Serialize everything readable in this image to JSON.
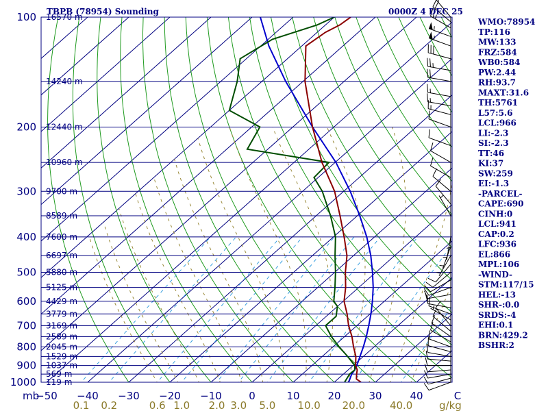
{
  "header": {
    "station": "TBPB (78954) Sounding",
    "time": "0000Z  4 DEC 25"
  },
  "chart_data": {
    "type": "skew-t",
    "pressure_levels": [
      100,
      200,
      300,
      400,
      500,
      600,
      700,
      800,
      900,
      1000
    ],
    "height_labels": [
      "16570 m",
      "14240 m",
      "12440 m",
      "10960 m",
      "9700 m",
      "8589 m",
      "7600 m",
      "6697 m",
      "5880 m",
      "5125 m",
      "4429 m",
      "3779 m",
      "3169 m",
      "2589 m",
      "2045 m",
      "1529 m",
      "1037 m",
      "569 m",
      "119 m"
    ],
    "height_pressures": [
      100,
      150,
      200,
      250,
      300,
      350,
      400,
      450,
      500,
      550,
      600,
      650,
      700,
      750,
      800,
      850,
      900,
      950,
      1000
    ],
    "temp_axis_labels": [
      "−50",
      "−40",
      "−30",
      "−20",
      "−10",
      "0",
      "10",
      "20",
      "30",
      "40",
      "C"
    ],
    "temp_axis_unit": "C",
    "mixing_ratio_labels": [
      "0.1",
      "0.2",
      "0.6",
      "1.0",
      "2.0",
      "3.0",
      "5.0",
      "10.0",
      "20.0",
      "40.0"
    ],
    "mixing_ratio_values": [
      0.1,
      0.2,
      0.6,
      1.0,
      2.0,
      3.0,
      5.0,
      10.0,
      20.0,
      40.0
    ],
    "mixing_ratio_unit": "g/kg",
    "pressure_unit": "mb",
    "temperature_profile": [
      {
        "p": 1000,
        "t": 26.5
      },
      {
        "p": 980,
        "t": 24.5
      },
      {
        "p": 950,
        "t": 23.2
      },
      {
        "p": 925,
        "t": 22.2
      },
      {
        "p": 900,
        "t": 20.6
      },
      {
        "p": 850,
        "t": 18.2
      },
      {
        "p": 800,
        "t": 15.0
      },
      {
        "p": 750,
        "t": 11.8
      },
      {
        "p": 700,
        "t": 8.0
      },
      {
        "p": 650,
        "t": 4.4
      },
      {
        "p": 600,
        "t": 0.2
      },
      {
        "p": 550,
        "t": -3.2
      },
      {
        "p": 500,
        "t": -7.4
      },
      {
        "p": 450,
        "t": -11.6
      },
      {
        "p": 400,
        "t": -17.4
      },
      {
        "p": 350,
        "t": -24.2
      },
      {
        "p": 300,
        "t": -32.2
      },
      {
        "p": 250,
        "t": -43.2
      },
      {
        "p": 200,
        "t": -55.2
      },
      {
        "p": 150,
        "t": -69.5
      },
      {
        "p": 120,
        "t": -79.0
      },
      {
        "p": 110,
        "t": -78.0
      },
      {
        "p": 105,
        "t": -76.5
      },
      {
        "p": 100,
        "t": -76.0
      }
    ],
    "dewpoint_profile": [
      {
        "p": 1000,
        "t": 22.5
      },
      {
        "p": 950,
        "t": 21.5
      },
      {
        "p": 925,
        "t": 21.6
      },
      {
        "p": 900,
        "t": 20.4
      },
      {
        "p": 850,
        "t": 16.2
      },
      {
        "p": 800,
        "t": 11.5
      },
      {
        "p": 750,
        "t": 6.8
      },
      {
        "p": 700,
        "t": 2.4
      },
      {
        "p": 660,
        "t": 2.4
      },
      {
        "p": 620,
        "t": 0.0
      },
      {
        "p": 600,
        "t": -2.3
      },
      {
        "p": 550,
        "t": -5.8
      },
      {
        "p": 500,
        "t": -9.8
      },
      {
        "p": 450,
        "t": -14.5
      },
      {
        "p": 400,
        "t": -19.5
      },
      {
        "p": 350,
        "t": -26.5
      },
      {
        "p": 300,
        "t": -35.2
      },
      {
        "p": 275,
        "t": -41.0
      },
      {
        "p": 250,
        "t": -41.5
      },
      {
        "p": 230,
        "t": -65.0
      },
      {
        "p": 200,
        "t": -68.0
      },
      {
        "p": 180,
        "t": -80.0
      },
      {
        "p": 150,
        "t": -86.0
      },
      {
        "p": 130,
        "t": -91.5
      },
      {
        "p": 115,
        "t": -89.0
      },
      {
        "p": 105,
        "t": -82.0
      },
      {
        "p": 100,
        "t": -80.0
      }
    ],
    "parcel_profile": [
      {
        "p": 1000,
        "t": 23.5
      },
      {
        "p": 950,
        "t": 22.0
      },
      {
        "p": 925,
        "t": 21.6
      },
      {
        "p": 900,
        "t": 20.9
      },
      {
        "p": 850,
        "t": 19.2
      },
      {
        "p": 800,
        "t": 17.4
      },
      {
        "p": 750,
        "t": 15.3
      },
      {
        "p": 700,
        "t": 12.9
      },
      {
        "p": 650,
        "t": 10.2
      },
      {
        "p": 600,
        "t": 7.1
      },
      {
        "p": 550,
        "t": 3.5
      },
      {
        "p": 500,
        "t": -0.8
      },
      {
        "p": 450,
        "t": -5.8
      },
      {
        "p": 400,
        "t": -11.9
      },
      {
        "p": 350,
        "t": -19.4
      },
      {
        "p": 300,
        "t": -28.4
      },
      {
        "p": 250,
        "t": -39.8
      },
      {
        "p": 200,
        "t": -55.2
      },
      {
        "p": 150,
        "t": -74.2
      },
      {
        "p": 120,
        "t": -88.0
      },
      {
        "p": 100,
        "t": -98.0
      }
    ],
    "wind_levels": [
      {
        "p": 1000,
        "dir": 250,
        "spd": 10
      },
      {
        "p": 975,
        "dir": 255,
        "spd": 10
      },
      {
        "p": 950,
        "dir": 260,
        "spd": 10
      },
      {
        "p": 925,
        "dir": 265,
        "spd": 10
      },
      {
        "p": 900,
        "dir": 270,
        "spd": 10
      },
      {
        "p": 875,
        "dir": 275,
        "spd": 10
      },
      {
        "p": 850,
        "dir": 280,
        "spd": 10
      },
      {
        "p": 825,
        "dir": 285,
        "spd": 10
      },
      {
        "p": 800,
        "dir": 290,
        "spd": 10
      },
      {
        "p": 775,
        "dir": 300,
        "spd": 10
      },
      {
        "p": 750,
        "dir": 305,
        "spd": 10
      },
      {
        "p": 725,
        "dir": 310,
        "spd": 10
      },
      {
        "p": 700,
        "dir": 320,
        "spd": 10
      },
      {
        "p": 675,
        "dir": 300,
        "spd": 5
      },
      {
        "p": 650,
        "dir": 290,
        "spd": 10
      },
      {
        "p": 625,
        "dir": 280,
        "spd": 10
      },
      {
        "p": 600,
        "dir": 270,
        "spd": 10
      },
      {
        "p": 575,
        "dir": 260,
        "spd": 10
      },
      {
        "p": 550,
        "dir": 250,
        "spd": 10
      },
      {
        "p": 525,
        "dir": 240,
        "spd": 10
      },
      {
        "p": 500,
        "dir": 230,
        "spd": 10
      },
      {
        "p": 475,
        "dir": 220,
        "spd": 10
      },
      {
        "p": 450,
        "dir": 210,
        "spd": 5
      },
      {
        "p": 425,
        "dir": 200,
        "spd": 5
      },
      {
        "p": 400,
        "dir": 190,
        "spd": 5
      },
      {
        "p": 375,
        "dir": 180,
        "spd": 5
      },
      {
        "p": 350,
        "dir": 330,
        "spd": 5
      },
      {
        "p": 325,
        "dir": 320,
        "spd": 10
      },
      {
        "p": 300,
        "dir": 310,
        "spd": 10
      },
      {
        "p": 275,
        "dir": 300,
        "spd": 10
      },
      {
        "p": 250,
        "dir": 300,
        "spd": 10
      },
      {
        "p": 225,
        "dir": 290,
        "spd": 10
      },
      {
        "p": 200,
        "dir": 290,
        "spd": 10
      },
      {
        "p": 185,
        "dir": 285,
        "spd": 15
      },
      {
        "p": 175,
        "dir": 280,
        "spd": 15
      },
      {
        "p": 165,
        "dir": 280,
        "spd": 15
      },
      {
        "p": 150,
        "dir": 280,
        "spd": 20
      },
      {
        "p": 140,
        "dir": 280,
        "spd": 25
      },
      {
        "p": 130,
        "dir": 285,
        "spd": 30
      },
      {
        "p": 120,
        "dir": 290,
        "spd": 55
      },
      {
        "p": 113,
        "dir": 290,
        "spd": 55
      },
      {
        "p": 107,
        "dir": 300,
        "spd": 25
      },
      {
        "p": 103,
        "dir": 310,
        "spd": 20
      },
      {
        "p": 100,
        "dir": 320,
        "spd": 15
      }
    ],
    "grid": true
  },
  "indices": [
    "WMO:78954",
    "TP:116",
    "MW:133",
    "FRZ:584",
    "WB0:584",
    "PW:2.44",
    "RH:93.7",
    "MAXT:31.6",
    "TH:5761",
    "L57:5.6",
    "LCL:966",
    "LI:-2.3",
    "SI:-2.3",
    "TT:46",
    "KI:37",
    "SW:259",
    "EI:-1.3",
    "-PARCEL-",
    "CAPE:690",
    "CINH:0",
    "LCL:941",
    "CAP:0.2",
    "LFC:936",
    "EL:866",
    "MPL:106",
    "-WIND-",
    "STM:117/15",
    "HEL:-13",
    "SHR-:0.0",
    "SRDS:-4",
    "EHI:0.1",
    "BRN:429.2",
    "BSHR:2"
  ],
  "colors": {
    "frame": "#000080",
    "isotherm": "#000080",
    "dry_adiabat": "#1e9a1e",
    "moist_adiabat": "#9a8a3a",
    "mixing_ratio": "#3aa0e0",
    "temperature": "#8b0000",
    "dewpoint": "#004d00",
    "parcel": "#0000cd",
    "mixing_label": "#8b7a2a"
  }
}
